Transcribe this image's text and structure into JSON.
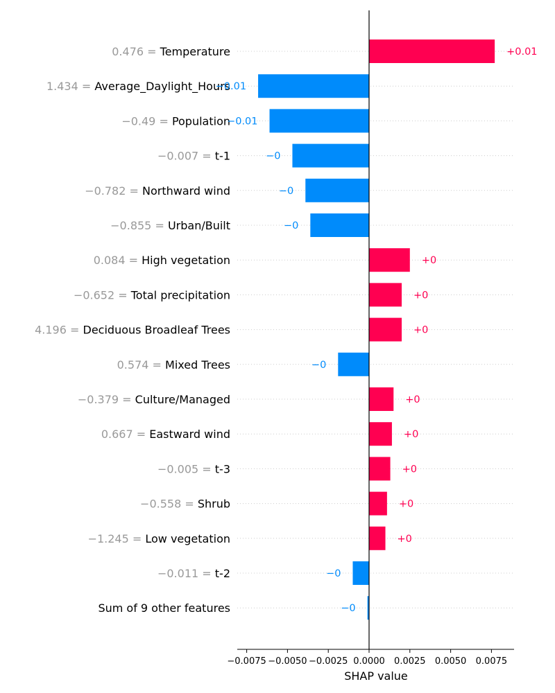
{
  "colors": {
    "positive": "#ff0051",
    "negative": "#008bfb",
    "value_text": "#999999",
    "gridline": "#cccccc"
  },
  "chart_data": {
    "type": "bar",
    "orientation": "horizontal",
    "xlabel": "SHAP value",
    "xlim": [
      -0.0085,
      0.0093
    ],
    "grid": "dotted row guides",
    "x_ticks": [
      -0.0075,
      -0.005,
      -0.0025,
      0,
      0.0025,
      0.005,
      0.0075
    ],
    "x_tick_labels": [
      "−0.0075",
      "−0.0050",
      "−0.0025",
      "0.0000",
      "0.0025",
      "0.0050",
      "0.0075"
    ],
    "features": [
      {
        "value": "0.476",
        "name": "Temperature",
        "shap": 0.0077,
        "label": "+0.01"
      },
      {
        "value": "1.434",
        "name": "Average_Daylight_Hours",
        "shap": -0.0068,
        "label": "−0.01"
      },
      {
        "value": "−0.49",
        "name": "Population",
        "shap": -0.0061,
        "label": "−0.01"
      },
      {
        "value": "−0.007",
        "name": "t-1",
        "shap": -0.0047,
        "label": "−0"
      },
      {
        "value": "−0.782",
        "name": "Northward wind",
        "shap": -0.0039,
        "label": "−0"
      },
      {
        "value": "−0.855",
        "name": "Urban/Built",
        "shap": -0.0036,
        "label": "−0"
      },
      {
        "value": "0.084",
        "name": "High vegetation",
        "shap": 0.0025,
        "label": "+0"
      },
      {
        "value": "−0.652",
        "name": "Total precipitation",
        "shap": 0.002,
        "label": "+0"
      },
      {
        "value": "4.196",
        "name": "Deciduous Broadleaf Trees",
        "shap": 0.002,
        "label": "+0"
      },
      {
        "value": "0.574",
        "name": "Mixed Trees",
        "shap": -0.0019,
        "label": "−0"
      },
      {
        "value": "−0.379",
        "name": "Culture/Managed",
        "shap": 0.0015,
        "label": "+0"
      },
      {
        "value": "0.667",
        "name": "Eastward wind",
        "shap": 0.0014,
        "label": "+0"
      },
      {
        "value": "−0.005",
        "name": "t-3",
        "shap": 0.0013,
        "label": "+0"
      },
      {
        "value": "−0.558",
        "name": "Shrub",
        "shap": 0.0011,
        "label": "+0"
      },
      {
        "value": "−1.245",
        "name": "Low vegetation",
        "shap": 0.001,
        "label": "+0"
      },
      {
        "value": "−0.011",
        "name": "t-2",
        "shap": -0.001,
        "label": "−0"
      },
      {
        "value": "",
        "name": "Sum of 9 other features",
        "shap": -0.0001,
        "label": "−0"
      }
    ]
  }
}
